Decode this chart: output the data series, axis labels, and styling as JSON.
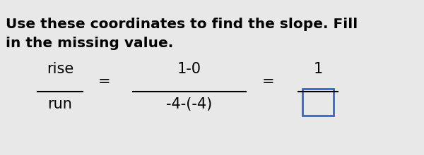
{
  "title_line1": "Use these coordinates to find the slope. Fill",
  "title_line2": "in the missing value.",
  "rise_text": "rise",
  "run_text": "run",
  "eq1": "=",
  "numerator1": "1-0",
  "denominator1": "-4-(-4)",
  "eq2": "=",
  "numerator2": "1",
  "bg_color": "#e8e8e8",
  "text_color": "#000000",
  "box_border_color": "#3366cc",
  "font_size_title": 14.5,
  "font_size_math": 15
}
